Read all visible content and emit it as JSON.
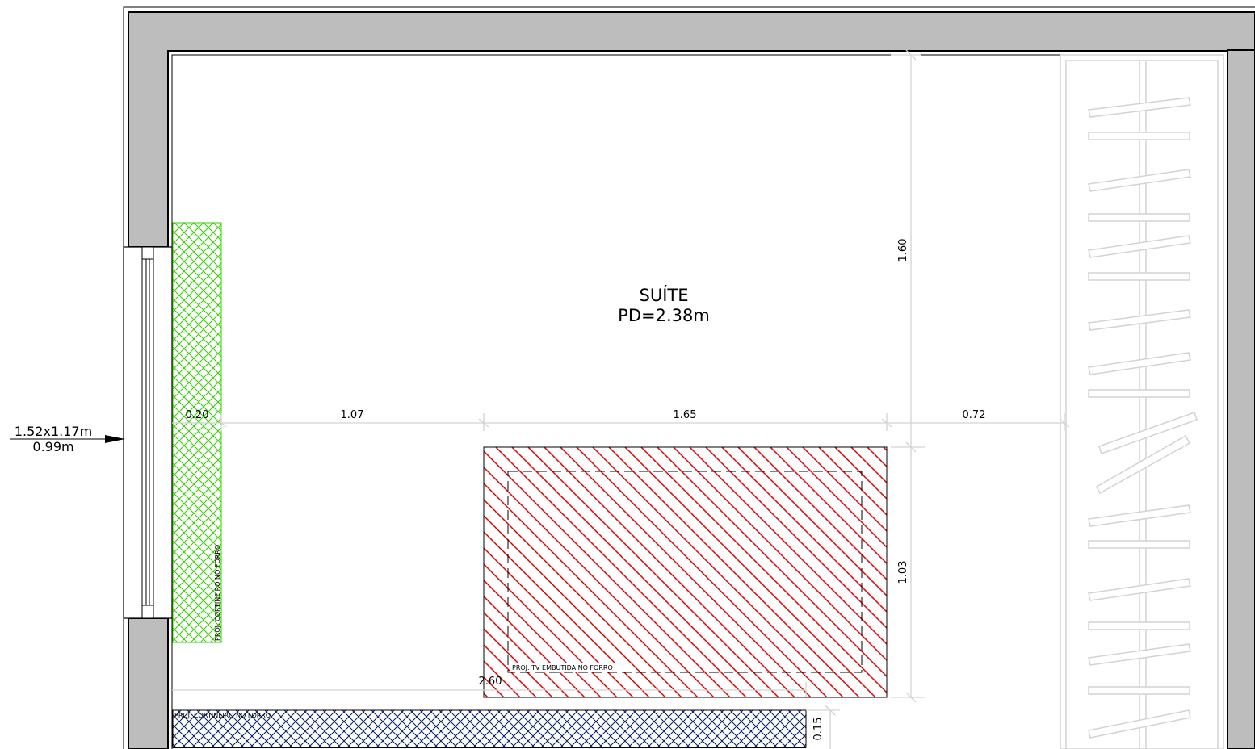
{
  "room": {
    "name": "SUÍTE",
    "ceiling_height": "PD=2.38m"
  },
  "window_tag": {
    "size": "1.52x1.17m",
    "sill": "0.99m"
  },
  "dimensions": {
    "curtain_depth": "0.20",
    "gap_to_tv": "1.07",
    "tv_width": "1.65",
    "gap_to_closet": "0.72",
    "upper_height": "1.60",
    "tv_height": "1.03",
    "bottom_curtain_length": "2.60",
    "bottom_curtain_depth": "0.15"
  },
  "annotations": {
    "side_curtain": "PROJ. CORTINEIRO NO FORRO",
    "bottom_curtain": "PROJ. CORTINEIRO NO FORRO",
    "tv": "PROJ. TV EMBUTIDA NO FORRO"
  },
  "colors": {
    "wall": "#bdbdbd",
    "curtain_hatch": "#33cc00",
    "tv_hatch": "#e00000",
    "bottom_hatch": "#001a66",
    "dimension_line": "#d3d3d3"
  }
}
